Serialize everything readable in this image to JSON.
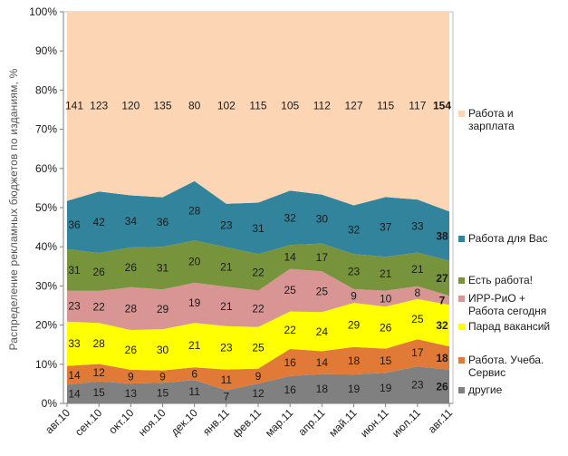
{
  "chart_data": {
    "type": "area",
    "stacked": true,
    "normalized": true,
    "ylabel": "Распределение рекламных бюджетов по изданиям, %",
    "ylim": [
      0,
      100
    ],
    "yticks": [
      "0%",
      "10%",
      "20%",
      "30%",
      "40%",
      "50%",
      "60%",
      "70%",
      "80%",
      "90%",
      "100%"
    ],
    "categories": [
      "авг.10",
      "сен.10",
      "окт.10",
      "ноя.10",
      "дек.10",
      "янв.11",
      "фев.11",
      "мар.11",
      "апр.11",
      "май.11",
      "июн.11",
      "июл.11",
      "авг.11"
    ],
    "bold_last_labels": true,
    "series": [
      {
        "name": "другие",
        "color": "#808080",
        "values": [
          14,
          15,
          13,
          15,
          11,
          7,
          12,
          16,
          18,
          19,
          19,
          23,
          26
        ]
      },
      {
        "name": "Работа. Учеба. Сервис",
        "color": "#e07a36",
        "values": [
          14,
          12,
          9,
          9,
          6,
          11,
          9,
          16,
          14,
          18,
          15,
          17,
          18
        ]
      },
      {
        "name": "Парад вакансий",
        "color": "#ffff00",
        "values": [
          33,
          28,
          26,
          30,
          21,
          23,
          25,
          22,
          24,
          29,
          26,
          25,
          32
        ]
      },
      {
        "name": "ИРР-РиО + Работа сегодня",
        "color": "#d99594",
        "values": [
          23,
          22,
          28,
          29,
          19,
          21,
          22,
          25,
          25,
          9,
          10,
          8,
          7
        ]
      },
      {
        "name": "Есть работа!",
        "color": "#77933c",
        "values": [
          31,
          26,
          26,
          31,
          20,
          21,
          22,
          14,
          17,
          23,
          21,
          21,
          27
        ]
      },
      {
        "name": "Работа для Вас",
        "color": "#31849b",
        "values": [
          36,
          42,
          34,
          36,
          28,
          23,
          31,
          32,
          30,
          32,
          37,
          33,
          38
        ]
      },
      {
        "name": "Работа и зарплата",
        "color": "#fcd5b5",
        "values": [
          141,
          123,
          120,
          135,
          80,
          102,
          115,
          105,
          112,
          127,
          115,
          117,
          154
        ]
      }
    ]
  }
}
